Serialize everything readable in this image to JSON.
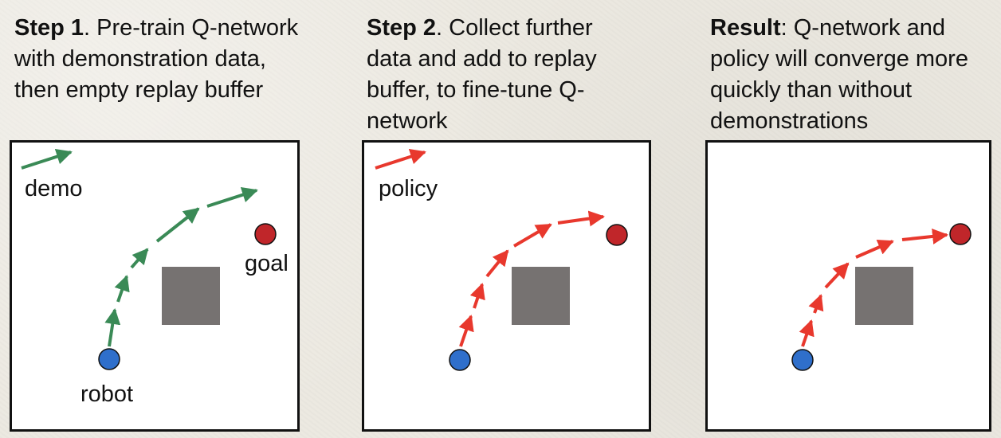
{
  "steps": [
    {
      "lead": "Step 1",
      "text": ". Pre-train Q-network with demonstration data, then empty replay buffer",
      "legend_label": "demo",
      "robot_label": "robot",
      "goal_label": "goal",
      "arrow_color": "#3a8a56"
    },
    {
      "lead": "Step 2",
      "text": ". Collect further data and add to replay buffer, to fine-tune Q-network",
      "legend_label": "policy",
      "arrow_color": "#e8382d"
    },
    {
      "lead": "Result",
      "text": ": Q-network and policy will converge more quickly than without demonstrations",
      "arrow_color": "#e8382d"
    }
  ],
  "colors": {
    "robot": "#2f6fcb",
    "goal": "#c0262a",
    "obstacle": "#767271",
    "demo": "#3a8a56",
    "policy": "#e8382d"
  }
}
